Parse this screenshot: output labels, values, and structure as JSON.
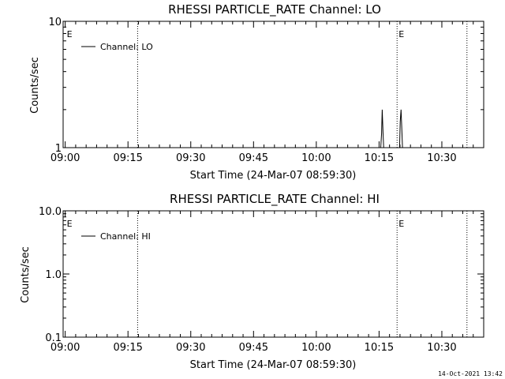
{
  "footer_timestamp": "14-Oct-2021 13:42",
  "chart_data": [
    {
      "type": "line",
      "title": "RHESSI PARTICLE_RATE Channel: LO",
      "xlabel": "Start Time (24-Mar-07 08:59:30)",
      "ylabel": "Counts/sec",
      "yscale": "log",
      "ylim": [
        1,
        10
      ],
      "y_ticks": [
        "1",
        "10"
      ],
      "xlim_minutes": [
        -0.5,
        100
      ],
      "x_ticks": [
        {
          "label": "09:00",
          "minute": 0
        },
        {
          "label": "09:15",
          "minute": 15
        },
        {
          "label": "09:30",
          "minute": 30
        },
        {
          "label": "09:45",
          "minute": 45
        },
        {
          "label": "10:00",
          "minute": 60
        },
        {
          "label": "10:15",
          "minute": 75
        },
        {
          "label": "10:30",
          "minute": 90
        }
      ],
      "vlines_minutes": [
        17.3,
        79.3,
        96.0
      ],
      "markers": [
        {
          "label": "E",
          "minute": 0.0
        },
        {
          "label": "E",
          "minute": 79.3
        }
      ],
      "legend": {
        "label": "Channel: LO",
        "position": "top-left"
      },
      "series": [
        {
          "name": "Channel: LO",
          "x": [
            0,
            75.4,
            75.6,
            75.75,
            75.95,
            76.1,
            79.9,
            80.05,
            80.25,
            80.4,
            80.6,
            81,
            100
          ],
          "y": [
            1,
            1,
            1.3,
            2,
            1.3,
            1,
            1,
            1.6,
            2,
            1.5,
            1,
            1,
            1
          ]
        }
      ]
    },
    {
      "type": "line",
      "title": "RHESSI PARTICLE_RATE Channel: HI",
      "xlabel": "Start Time (24-Mar-07 08:59:30)",
      "ylabel": "Counts/sec",
      "yscale": "log",
      "ylim": [
        0.1,
        10
      ],
      "y_ticks": [
        "0.1",
        "1.0",
        "10.0"
      ],
      "xlim_minutes": [
        -0.5,
        100
      ],
      "x_ticks": [
        {
          "label": "09:00",
          "minute": 0
        },
        {
          "label": "09:15",
          "minute": 15
        },
        {
          "label": "09:30",
          "minute": 30
        },
        {
          "label": "09:45",
          "minute": 45
        },
        {
          "label": "10:00",
          "minute": 60
        },
        {
          "label": "10:15",
          "minute": 75
        },
        {
          "label": "10:30",
          "minute": 90
        }
      ],
      "vlines_minutes": [
        17.3,
        79.3,
        96.0
      ],
      "markers": [
        {
          "label": "E",
          "minute": 0.0
        },
        {
          "label": "E",
          "minute": 79.3
        }
      ],
      "legend": {
        "label": "Channel: HI",
        "position": "top-left"
      },
      "series": [
        {
          "name": "Channel: HI",
          "x": [],
          "y": []
        }
      ]
    }
  ]
}
